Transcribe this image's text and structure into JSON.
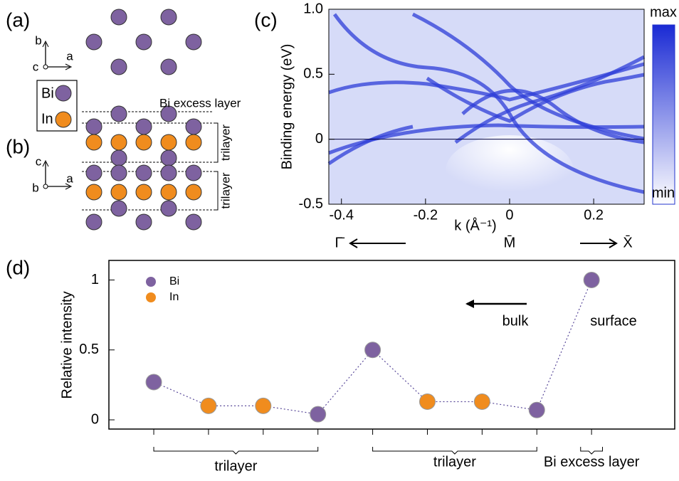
{
  "panels": [
    "(a)",
    "(b)",
    "(c)",
    "(d)"
  ],
  "structure": {
    "top_axes": [
      "b",
      "a",
      "c"
    ],
    "side_axes": [
      "c",
      "a",
      "b"
    ],
    "legend": [
      "Bi",
      "In"
    ],
    "excess_label": "Bi excess layer",
    "trilayer_labels": [
      "trilayer",
      "trilayer"
    ]
  },
  "chart_data": [
    {
      "type": "image",
      "xlabel": "k (Å⁻¹)",
      "ylabel": "Binding energy (eV)",
      "xlim": [
        -0.43,
        0.32
      ],
      "ylim": [
        -0.5,
        1.0
      ],
      "xticks": [
        -0.4,
        -0.2,
        0,
        0.2
      ],
      "yticks": [
        {
          "value": 1,
          "label": "1.0"
        },
        0.5,
        0,
        -0.5
      ],
      "colorbar_labels": [
        "max",
        "min"
      ],
      "colormap": [
        "#1a2ad4",
        "#ffffff"
      ],
      "k_points": [
        "Γ̄",
        "M̄",
        "X̄"
      ]
    },
    {
      "type": "scatter",
      "ylabel": "Relative intensity",
      "xlim": [
        0.18,
        10.52
      ],
      "ylim": [
        -0.066,
        1.14
      ],
      "xticks": [
        1,
        2,
        3,
        4,
        5,
        6,
        7,
        8,
        9
      ],
      "yticks": [
        0,
        0.5,
        1
      ],
      "series": [
        {
          "name": "Bi",
          "color": "#7e62a0",
          "x": [
            1,
            4,
            5,
            8,
            9
          ],
          "values": [
            0.27,
            0.04,
            0.5,
            0.07,
            1.0
          ]
        },
        {
          "name": "In",
          "color": "#f08c1e",
          "x": [
            2,
            3,
            6,
            7
          ],
          "values": [
            0.1,
            0.1,
            0.13,
            0.13
          ]
        }
      ],
      "annotations": [
        "bulk",
        "surface"
      ],
      "groups": [
        {
          "label": "trilayer",
          "from": 1,
          "to": 4
        },
        {
          "label": "trilayer",
          "from": 5,
          "to": 8
        },
        {
          "label": "Bi excess layer",
          "from": 8.8,
          "to": 9.2
        }
      ]
    }
  ]
}
